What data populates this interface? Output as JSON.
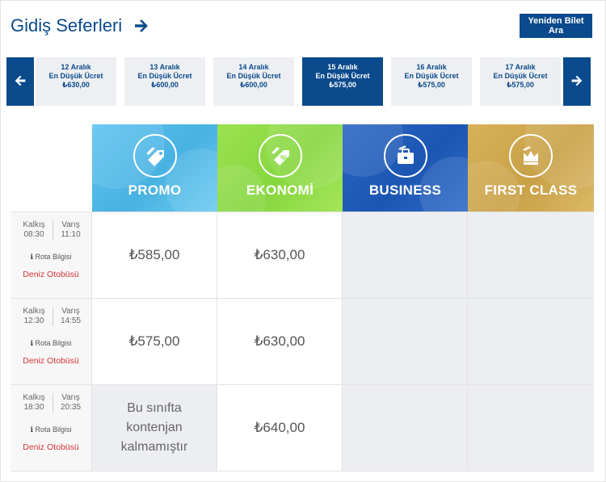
{
  "header": {
    "title": "Gidiş Seferleri",
    "research_label": "Yeniden Bilet Ara"
  },
  "dates": [
    {
      "date": "12 Aralık",
      "caption": "En Düşük Ücret",
      "price": "₺630,00",
      "active": false
    },
    {
      "date": "13 Aralık",
      "caption": "En Düşük Ücret",
      "price": "₺600,00",
      "active": false
    },
    {
      "date": "14 Aralık",
      "caption": "En Düşük Ücret",
      "price": "₺600,00",
      "active": false
    },
    {
      "date": "15 Aralık",
      "caption": "En Düşük Ücret",
      "price": "₺575,00",
      "active": true
    },
    {
      "date": "16 Aralık",
      "caption": "En Düşük Ücret",
      "price": "₺575,00",
      "active": false
    },
    {
      "date": "17 Aralık",
      "caption": "En Düşük Ücret",
      "price": "₺575,00",
      "active": false
    }
  ],
  "classes": [
    {
      "label": "PROMO",
      "icon": "price-tag-icon",
      "color": "#4fb8e6"
    },
    {
      "label": "EKONOMİ",
      "icon": "percent-tag-icon",
      "color": "#8fdc48"
    },
    {
      "label": "BUSINESS",
      "icon": "briefcase-icon",
      "color": "#1f5bb8"
    },
    {
      "label": "FIRST CLASS",
      "icon": "crown-icon",
      "color": "#d1aa52"
    }
  ],
  "labels": {
    "departure": "Kalkış",
    "arrival": "Varış",
    "route_info": "Rota Bilgisi"
  },
  "trips": [
    {
      "departure": "08:30",
      "arrival": "11:10",
      "vessel": "Deniz Otobüsü",
      "fares": [
        "₺585,00",
        "₺630,00",
        "",
        ""
      ]
    },
    {
      "departure": "12:30",
      "arrival": "14:55",
      "vessel": "Deniz Otobüsü",
      "fares": [
        "₺575,00",
        "₺630,00",
        "",
        ""
      ]
    },
    {
      "departure": "18:30",
      "arrival": "20:35",
      "vessel": "Deniz Otobüsü",
      "fares": [
        "",
        "₺640,00",
        "",
        ""
      ],
      "promo_unavailable": "Bu sınıfta kontenjan kalmamıştır"
    }
  ],
  "colors": {
    "brand": "#0b4a8c",
    "vessel": "#d6323a",
    "unavailable_bg": "#eceef1"
  }
}
